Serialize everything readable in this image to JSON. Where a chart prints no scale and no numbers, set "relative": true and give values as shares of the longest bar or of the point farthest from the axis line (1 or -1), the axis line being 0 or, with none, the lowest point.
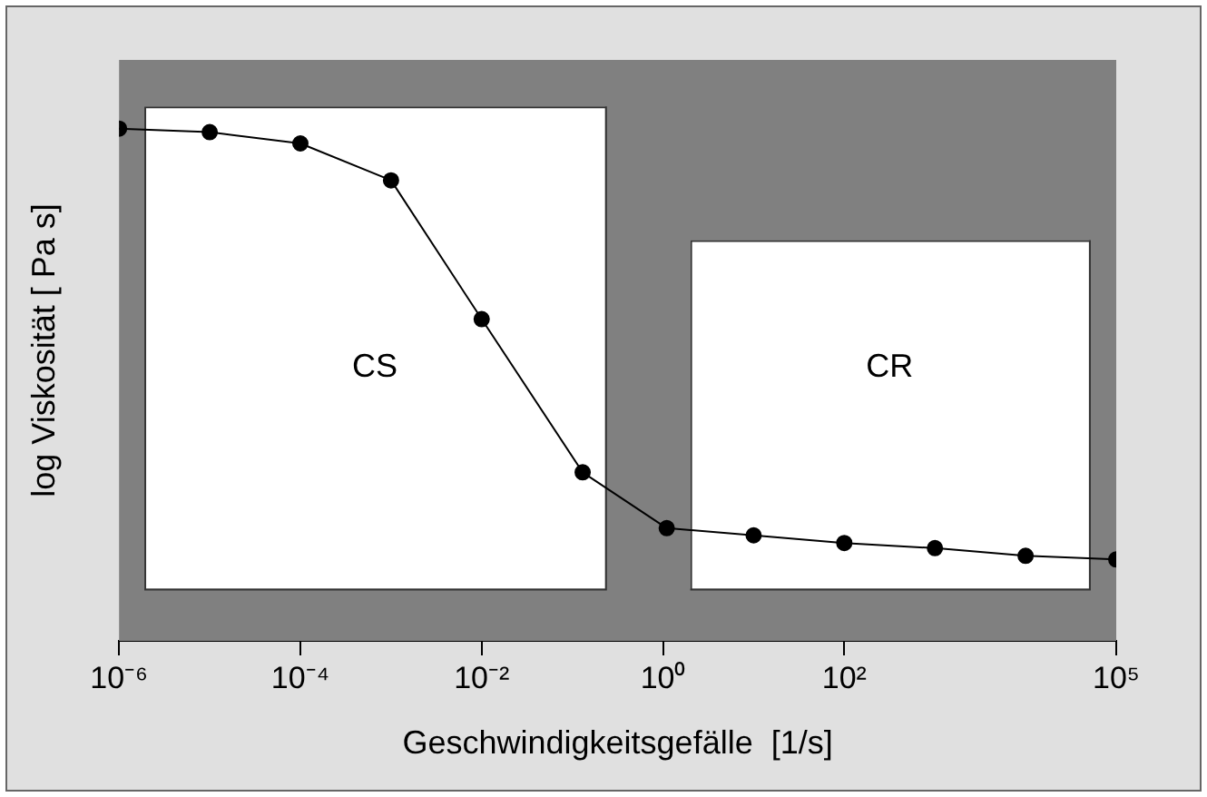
{
  "chart_data": {
    "type": "line",
    "xlabel": "Geschwindigkeitsgefälle  [1/s]",
    "ylabel": "log Viskosität [ Pa s]",
    "relative": true,
    "log": "x",
    "x": [
      1e-06,
      1e-05,
      0.0001,
      0.001,
      0.01,
      0.13,
      1.1,
      10,
      100,
      1000,
      10000,
      100000
    ],
    "series": [
      {
        "color": "#000000",
        "values": [
          1,
          0.993,
          0.971,
          0.899,
          0.628,
          0.329,
          0.22,
          0.206,
          0.191,
          0.181,
          0.166,
          0.159
        ]
      }
    ],
    "xlim": [
      1e-06,
      100000.0
    ],
    "xticks": [
      {
        "value": 1e-06,
        "label": "10⁻⁶"
      },
      {
        "value": 0.0001,
        "label": "10⁻⁴"
      },
      {
        "value": 0.01,
        "label": "10⁻²"
      },
      {
        "value": 1,
        "label": "10⁰"
      },
      {
        "value": 100,
        "label": "10²"
      },
      {
        "value": 100000,
        "label": "10⁵"
      }
    ],
    "bands": [
      {
        "axis": "x",
        "from": 1.9e-06,
        "to": 0.23,
        "label": "CS",
        "color": "#ffffff"
      },
      {
        "axis": "x",
        "from": 2,
        "to": 50000,
        "label": "CR",
        "color": "#ffffff"
      }
    ],
    "grid": false,
    "legend": false,
    "marker": "circle",
    "line_style": "solid"
  }
}
